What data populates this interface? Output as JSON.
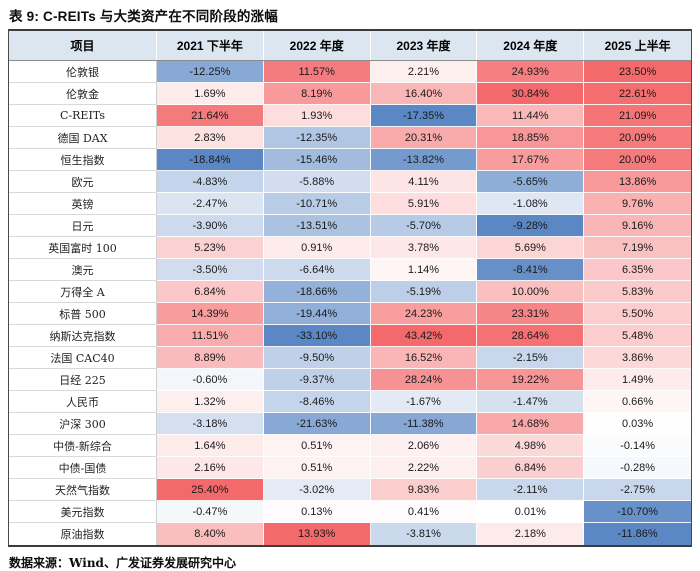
{
  "title": "表 9:  C-REITs 与大类资产在不同阶段的涨幅",
  "source": "数据来源：Wind、广发证券发展研究中心",
  "colors": {
    "header_bg": "#dce6f1",
    "heat_max_red": "#f4696b",
    "heat_min_blue": "#5b88c5",
    "border_dark": "#3c3c3c"
  },
  "chart_data": {
    "type": "table",
    "title": "表 9: C-REITs 与大类资产在不同阶段的涨幅",
    "legend": "heatmap: per-column diverging red(positive)/white(0)/blue(negative)",
    "columns": [
      "项目",
      "2021 下半年",
      "2022 年度",
      "2023 年度",
      "2024 年度",
      "2025 上半年"
    ],
    "rows": [
      {
        "label": "伦敦银",
        "values": [
          "-12.25%",
          "11.57%",
          "2.21%",
          "24.93%",
          "23.50%"
        ]
      },
      {
        "label": "伦敦金",
        "values": [
          "1.69%",
          "8.19%",
          "16.40%",
          "30.84%",
          "22.61%"
        ]
      },
      {
        "label": "C-REITs",
        "values": [
          "21.64%",
          "1.93%",
          "-17.35%",
          "11.44%",
          "21.09%"
        ]
      },
      {
        "label": "德国 DAX",
        "values": [
          "2.83%",
          "-12.35%",
          "20.31%",
          "18.85%",
          "20.09%"
        ]
      },
      {
        "label": "恒生指数",
        "values": [
          "-18.84%",
          "-15.46%",
          "-13.82%",
          "17.67%",
          "20.00%"
        ]
      },
      {
        "label": "欧元",
        "values": [
          "-4.83%",
          "-5.88%",
          "4.11%",
          "-5.65%",
          "13.86%"
        ]
      },
      {
        "label": "英镑",
        "values": [
          "-2.47%",
          "-10.71%",
          "5.91%",
          "-1.08%",
          "9.76%"
        ]
      },
      {
        "label": "日元",
        "values": [
          "-3.90%",
          "-13.51%",
          "-5.70%",
          "-9.28%",
          "9.16%"
        ]
      },
      {
        "label": "英国富时 100",
        "values": [
          "5.23%",
          "0.91%",
          "3.78%",
          "5.69%",
          "7.19%"
        ]
      },
      {
        "label": "澳元",
        "values": [
          "-3.50%",
          "-6.64%",
          "1.14%",
          "-8.41%",
          "6.35%"
        ]
      },
      {
        "label": "万得全 A",
        "values": [
          "6.84%",
          "-18.66%",
          "-5.19%",
          "10.00%",
          "5.83%"
        ]
      },
      {
        "label": "标普 500",
        "values": [
          "14.39%",
          "-19.44%",
          "24.23%",
          "23.31%",
          "5.50%"
        ]
      },
      {
        "label": "纳斯达克指数",
        "values": [
          "11.51%",
          "-33.10%",
          "43.42%",
          "28.64%",
          "5.48%"
        ]
      },
      {
        "label": "法国 CAC40",
        "values": [
          "8.89%",
          "-9.50%",
          "16.52%",
          "-2.15%",
          "3.86%"
        ]
      },
      {
        "label": "日经 225",
        "values": [
          "-0.60%",
          "-9.37%",
          "28.24%",
          "19.22%",
          "1.49%"
        ]
      },
      {
        "label": "人民币",
        "values": [
          "1.32%",
          "-8.46%",
          "-1.67%",
          "-1.47%",
          "0.66%"
        ]
      },
      {
        "label": "沪深 300",
        "values": [
          "-3.18%",
          "-21.63%",
          "-11.38%",
          "14.68%",
          "0.03%"
        ]
      },
      {
        "label": "中债-新综合",
        "values": [
          "1.64%",
          "0.51%",
          "2.06%",
          "4.98%",
          "-0.14%"
        ]
      },
      {
        "label": "中债-国债",
        "values": [
          "2.16%",
          "0.51%",
          "2.22%",
          "6.84%",
          "-0.28%"
        ]
      },
      {
        "label": "天然气指数",
        "values": [
          "25.40%",
          "-3.02%",
          "9.83%",
          "-2.11%",
          "-2.75%"
        ]
      },
      {
        "label": "美元指数",
        "values": [
          "-0.47%",
          "0.13%",
          "0.41%",
          "0.01%",
          "-10.70%"
        ]
      },
      {
        "label": "原油指数",
        "values": [
          "8.40%",
          "13.93%",
          "-3.81%",
          "2.18%",
          "-11.86%"
        ]
      }
    ]
  }
}
